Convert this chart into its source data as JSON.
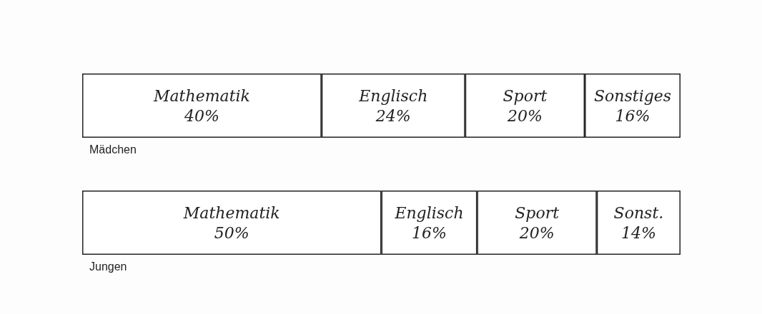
{
  "chart_data": {
    "type": "bar",
    "orientation": "horizontal",
    "stacked": true,
    "categories": [
      "Mädchen",
      "Jungen"
    ],
    "series": [
      {
        "color": "#ffffff",
        "values": [
          40,
          50
        ],
        "value_labels": [
          "Mathematik\n40%",
          "Mathematik\n50%"
        ]
      },
      {
        "color": "#ffffff",
        "values": [
          24,
          16
        ],
        "value_labels": [
          "Englisch\n24%",
          "Englisch\n16%"
        ]
      },
      {
        "color": "#ffffff",
        "values": [
          20,
          20
        ],
        "value_labels": [
          "Sport\n20%",
          "Sport\n20%"
        ]
      },
      {
        "color": "#ffffff",
        "values": [
          16,
          14
        ],
        "value_labels": [
          "Sonstiges\n16%",
          "Sonst.\n14%"
        ]
      }
    ]
  }
}
